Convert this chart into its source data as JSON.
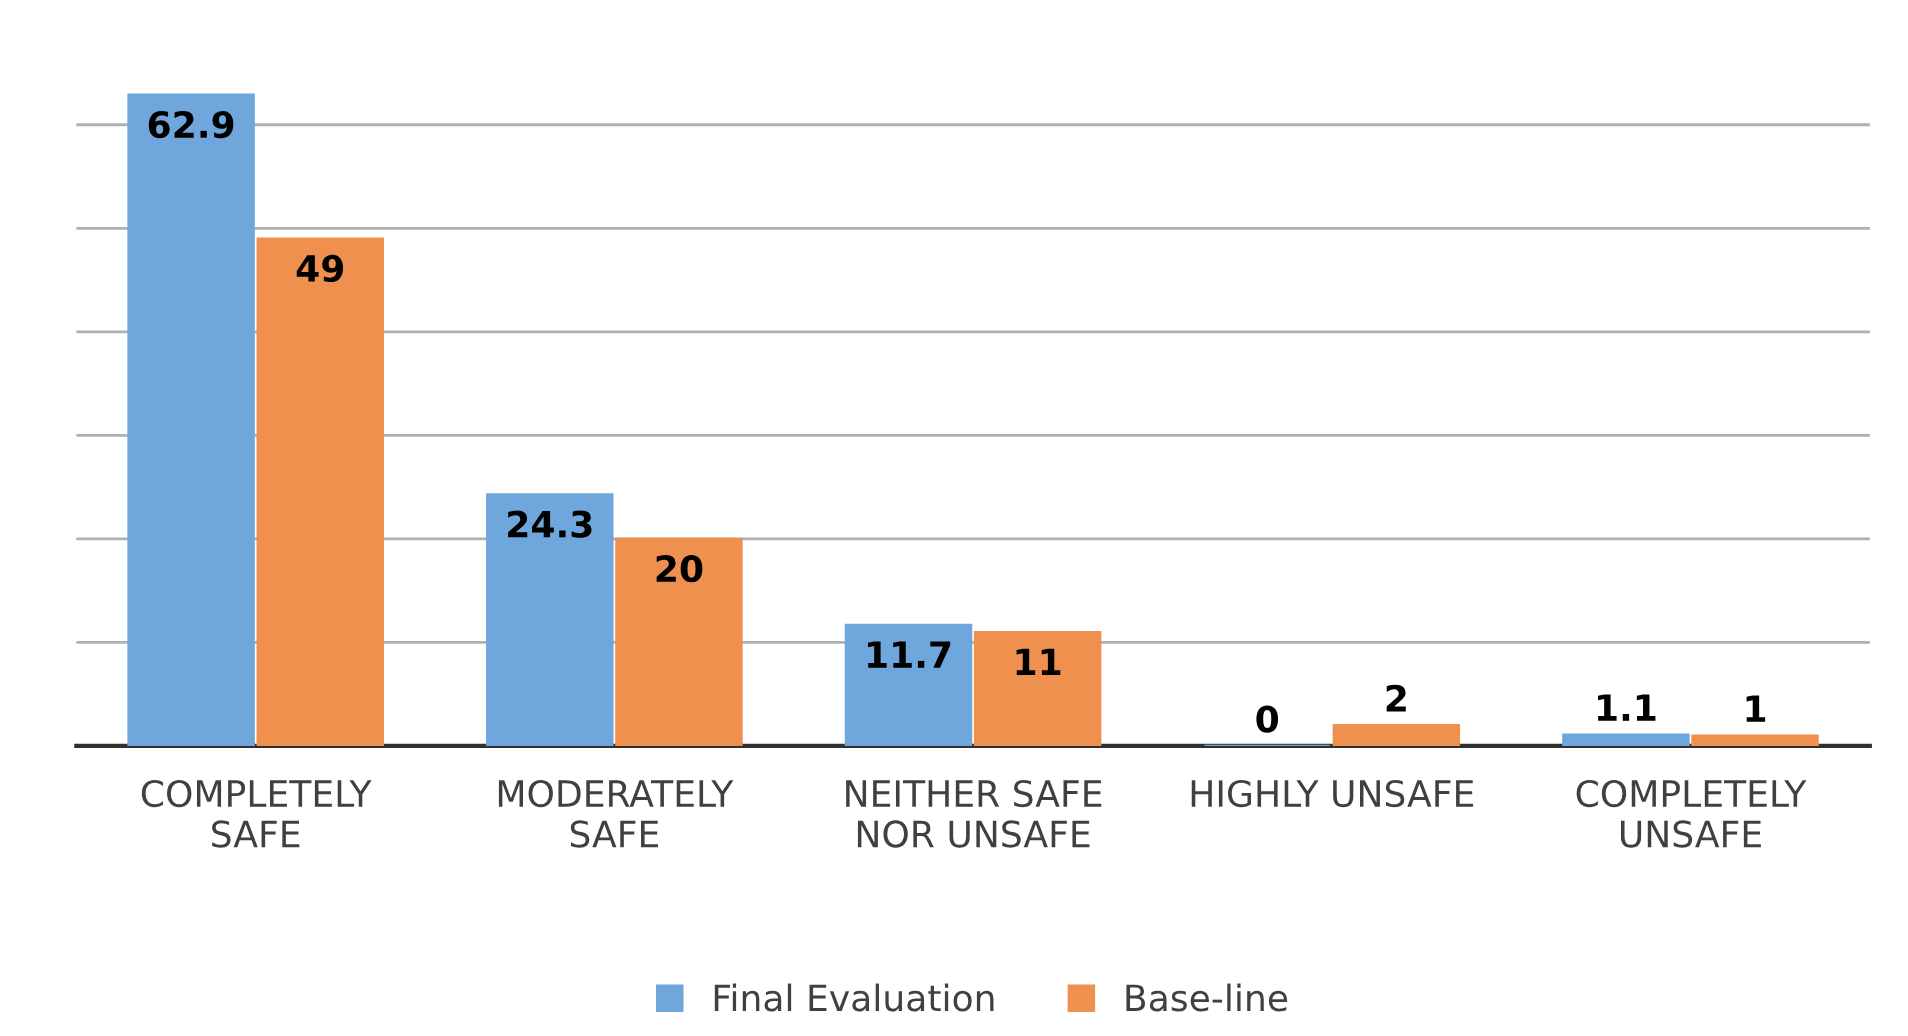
{
  "chart_data": {
    "type": "bar",
    "categories": [
      "COMPLETELY\nSAFE",
      "MODERATELY\nSAFE",
      "NEITHER SAFE\nNOR UNSAFE",
      "HIGHLY UNSAFE",
      "COMPLETELY\nUNSAFE"
    ],
    "series": [
      {
        "name": "Final Evaluation",
        "color": "#6fa6dc",
        "values": [
          62.9,
          24.3,
          11.7,
          0,
          1.1
        ]
      },
      {
        "name": "Base-line",
        "color": "#f0904f",
        "values": [
          49,
          20,
          11,
          2,
          1
        ]
      }
    ],
    "yticks": [
      {
        "value": 0,
        "label": null
      },
      {
        "value": 10,
        "label": null
      },
      {
        "value": 20,
        "label": null
      },
      {
        "value": 30,
        "label": null
      },
      {
        "value": 40,
        "label": null
      },
      {
        "value": 50,
        "label": null
      },
      {
        "value": 60,
        "label": null
      }
    ],
    "tick_labels": "x",
    "grid": "y",
    "data_labels": true,
    "legend": "bottom"
  }
}
